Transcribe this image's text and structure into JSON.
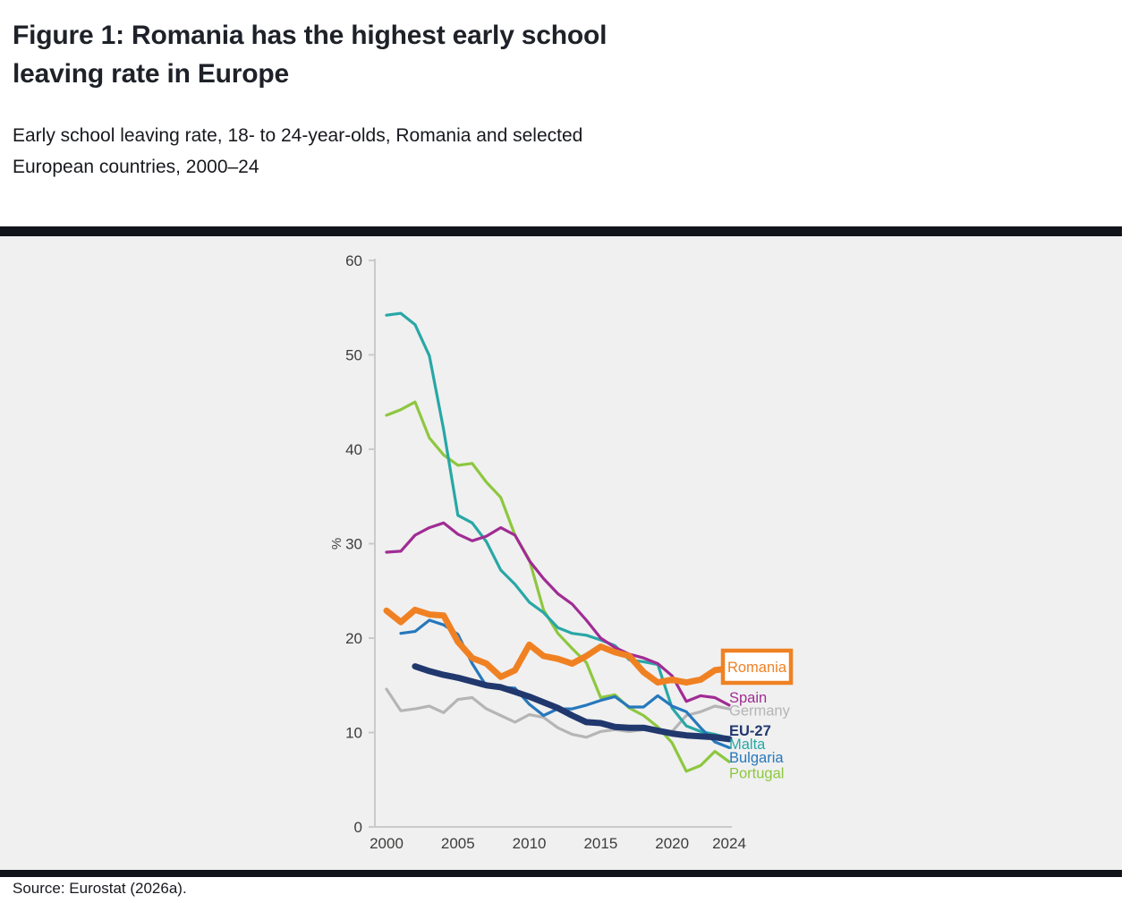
{
  "figure": {
    "title_lines": [
      "Figure 1: Romania has the highest early school",
      "leaving rate in Europe"
    ],
    "subtitle_lines": [
      "Early school leaving rate, 18- to 24-year-olds, Romania and selected",
      "European countries, 2000–24"
    ],
    "source": "Source: Eurostat (2026a)."
  },
  "chart_data": {
    "type": "line",
    "x": [
      2000,
      2001,
      2002,
      2003,
      2004,
      2005,
      2006,
      2007,
      2008,
      2009,
      2010,
      2011,
      2012,
      2013,
      2014,
      2015,
      2016,
      2017,
      2018,
      2019,
      2020,
      2021,
      2022,
      2023,
      2024
    ],
    "x_tick_labels": [
      "2000",
      "2005",
      "2010",
      "2015",
      "2020",
      "2024"
    ],
    "y_ticks": [
      "0",
      "10",
      "20",
      "30",
      "40",
      "50",
      "60"
    ],
    "ylabel": "%",
    "ylim": [
      0,
      60
    ],
    "xlim": [
      2000,
      2024
    ],
    "grid": false,
    "background_color": "#f0f0f0",
    "axis_color": "#c9cbca",
    "tick_text_color": "#3c3c3b",
    "legend_position": "right-of-lines",
    "series": [
      {
        "id": "germany",
        "label": "Germany",
        "color": "#b5b5b6",
        "thick": false,
        "highlight": false,
        "values": [
          14.6,
          12.3,
          12.5,
          12.8,
          12.1,
          13.5,
          13.7,
          12.5,
          11.8,
          11.1,
          11.9,
          11.6,
          10.5,
          9.8,
          9.5,
          10.1,
          10.3,
          10.1,
          10.3,
          10.3,
          10.1,
          11.8,
          12.2,
          12.8,
          12.5
        ]
      },
      {
        "id": "portugal",
        "label": "Portugal",
        "color": "#8ec73f",
        "thick": false,
        "highlight": false,
        "values": [
          43.6,
          44.2,
          45.0,
          41.2,
          39.4,
          38.3,
          38.5,
          36.5,
          34.9,
          30.9,
          28.3,
          23.0,
          20.5,
          18.9,
          17.4,
          13.7,
          14.0,
          12.6,
          11.8,
          10.6,
          8.9,
          5.9,
          6.5,
          8.0,
          6.9
        ]
      },
      {
        "id": "malta",
        "label": "Malta",
        "color": "#28a7a6",
        "thick": false,
        "highlight": false,
        "values": [
          54.2,
          54.4,
          53.2,
          49.9,
          42.1,
          33.0,
          32.2,
          30.2,
          27.2,
          25.7,
          23.8,
          22.7,
          21.1,
          20.5,
          20.3,
          19.8,
          19.2,
          17.7,
          17.5,
          17.2,
          12.6,
          10.7,
          10.1,
          9.8,
          9.4
        ]
      },
      {
        "id": "bulgaria",
        "label": "Bulgaria",
        "color": "#2678bc",
        "thick": false,
        "highlight": false,
        "values": [
          null,
          20.5,
          20.7,
          21.9,
          21.4,
          20.4,
          17.3,
          14.9,
          14.8,
          14.7,
          13.0,
          11.8,
          12.5,
          12.5,
          12.9,
          13.4,
          13.8,
          12.7,
          12.7,
          13.9,
          12.8,
          12.2,
          10.5,
          9.0,
          8.4
        ]
      },
      {
        "id": "spain",
        "label": "Spain",
        "color": "#a02c94",
        "thick": false,
        "highlight": false,
        "values": [
          29.1,
          29.2,
          30.9,
          31.7,
          32.2,
          31.0,
          30.3,
          30.8,
          31.7,
          30.9,
          28.2,
          26.3,
          24.7,
          23.6,
          21.9,
          20.0,
          19.0,
          18.3,
          17.9,
          17.3,
          16.0,
          13.3,
          13.9,
          13.7,
          12.9
        ]
      },
      {
        "id": "eu27",
        "label": "EU-27",
        "color": "#21386e",
        "thick": true,
        "highlight": false,
        "values": [
          null,
          null,
          17.0,
          16.5,
          16.1,
          15.8,
          15.4,
          15.0,
          14.8,
          14.3,
          13.8,
          13.2,
          12.6,
          11.8,
          11.1,
          11.0,
          10.6,
          10.5,
          10.5,
          10.2,
          9.9,
          9.7,
          9.6,
          9.5,
          9.3
        ]
      },
      {
        "id": "romania",
        "label": "Romania",
        "color": "#f08123",
        "thick": true,
        "highlight": true,
        "values": [
          22.9,
          21.7,
          23.0,
          22.5,
          22.4,
          19.6,
          17.9,
          17.3,
          15.9,
          16.6,
          19.3,
          18.1,
          17.8,
          17.3,
          18.1,
          19.1,
          18.5,
          18.1,
          16.4,
          15.3,
          15.6,
          15.3,
          15.6,
          16.6,
          16.8
        ]
      }
    ]
  }
}
